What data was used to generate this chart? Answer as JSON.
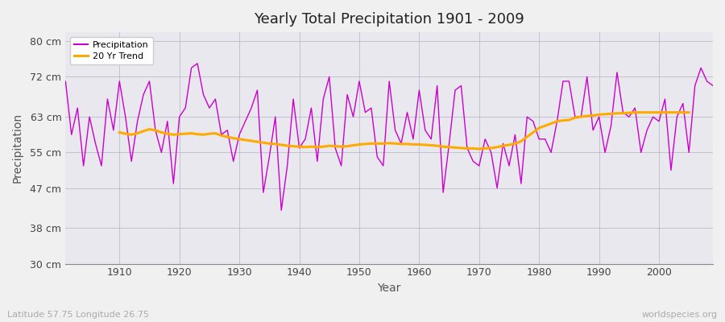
{
  "title": "Yearly Total Precipitation 1901 - 2009",
  "xlabel": "Year",
  "ylabel": "Precipitation",
  "footnote_left": "Latitude 57.75 Longitude 26.75",
  "footnote_right": "worldspecies.org",
  "fig_bg_color": "#f0f0f0",
  "plot_bg_color": "#e8e8ee",
  "precip_color": "#cc00cc",
  "trend_color": "#ffaa00",
  "ylim": [
    30,
    82
  ],
  "yticks": [
    30,
    38,
    47,
    55,
    63,
    72,
    80
  ],
  "ytick_labels": [
    "30 cm",
    "38 cm",
    "47 cm",
    "55 cm",
    "63 cm",
    "72 cm",
    "80 cm"
  ],
  "years": [
    1901,
    1902,
    1903,
    1904,
    1905,
    1906,
    1907,
    1908,
    1909,
    1910,
    1911,
    1912,
    1913,
    1914,
    1915,
    1916,
    1917,
    1918,
    1919,
    1920,
    1921,
    1922,
    1923,
    1924,
    1925,
    1926,
    1927,
    1928,
    1929,
    1930,
    1931,
    1932,
    1933,
    1934,
    1935,
    1936,
    1937,
    1938,
    1939,
    1940,
    1941,
    1942,
    1943,
    1944,
    1945,
    1946,
    1947,
    1948,
    1949,
    1950,
    1951,
    1952,
    1953,
    1954,
    1955,
    1956,
    1957,
    1958,
    1959,
    1960,
    1961,
    1962,
    1963,
    1964,
    1965,
    1966,
    1967,
    1968,
    1969,
    1970,
    1971,
    1972,
    1973,
    1974,
    1975,
    1976,
    1977,
    1978,
    1979,
    1980,
    1981,
    1982,
    1983,
    1984,
    1985,
    1986,
    1987,
    1988,
    1989,
    1990,
    1991,
    1992,
    1993,
    1994,
    1995,
    1996,
    1997,
    1998,
    1999,
    2000,
    2001,
    2002,
    2003,
    2004,
    2005,
    2006,
    2007,
    2008,
    2009
  ],
  "precip": [
    71,
    59,
    65,
    52,
    63,
    57,
    52,
    67,
    60,
    71,
    63,
    53,
    62,
    68,
    71,
    60,
    55,
    62,
    48,
    63,
    65,
    74,
    75,
    68,
    65,
    67,
    59,
    60,
    53,
    59,
    62,
    65,
    69,
    46,
    54,
    63,
    42,
    52,
    67,
    56,
    58,
    65,
    53,
    67,
    72,
    56,
    52,
    68,
    63,
    71,
    64,
    65,
    54,
    52,
    71,
    60,
    57,
    64,
    58,
    69,
    60,
    58,
    70,
    46,
    57,
    69,
    70,
    56,
    53,
    52,
    58,
    55,
    47,
    57,
    52,
    59,
    48,
    63,
    62,
    58,
    58,
    55,
    62,
    71,
    71,
    63,
    63,
    72,
    60,
    63,
    55,
    61,
    73,
    64,
    63,
    65,
    55,
    60,
    63,
    62,
    67,
    51,
    63,
    66,
    55,
    70,
    74,
    71,
    70
  ],
  "trend": [
    null,
    null,
    null,
    null,
    null,
    null,
    null,
    null,
    null,
    59.5,
    59.2,
    59.0,
    59.3,
    59.8,
    60.2,
    60.0,
    59.5,
    59.2,
    59.0,
    59.1,
    59.2,
    59.3,
    59.1,
    59.0,
    59.2,
    59.3,
    58.8,
    58.5,
    58.2,
    58.0,
    57.8,
    57.6,
    57.4,
    57.2,
    57.0,
    56.9,
    56.7,
    56.5,
    56.4,
    56.3,
    56.2,
    56.3,
    56.2,
    56.3,
    56.5,
    56.4,
    56.3,
    56.4,
    56.6,
    56.8,
    56.9,
    57.0,
    57.0,
    57.0,
    57.1,
    57.0,
    56.9,
    56.9,
    56.8,
    56.8,
    56.7,
    56.6,
    56.5,
    56.3,
    56.2,
    56.1,
    56.0,
    55.9,
    55.9,
    55.8,
    55.9,
    56.0,
    56.2,
    56.5,
    56.7,
    57.0,
    57.5,
    58.5,
    59.5,
    60.5,
    61.0,
    61.5,
    62.0,
    62.2,
    62.3,
    62.8,
    63.0,
    63.2,
    63.3,
    63.5,
    63.6,
    63.7,
    63.8,
    63.8,
    63.9,
    64.0,
    64.0,
    64.0,
    64.0,
    64.0,
    64.0,
    64.0,
    64.0,
    64.0,
    64.0,
    null,
    null,
    null,
    null
  ]
}
